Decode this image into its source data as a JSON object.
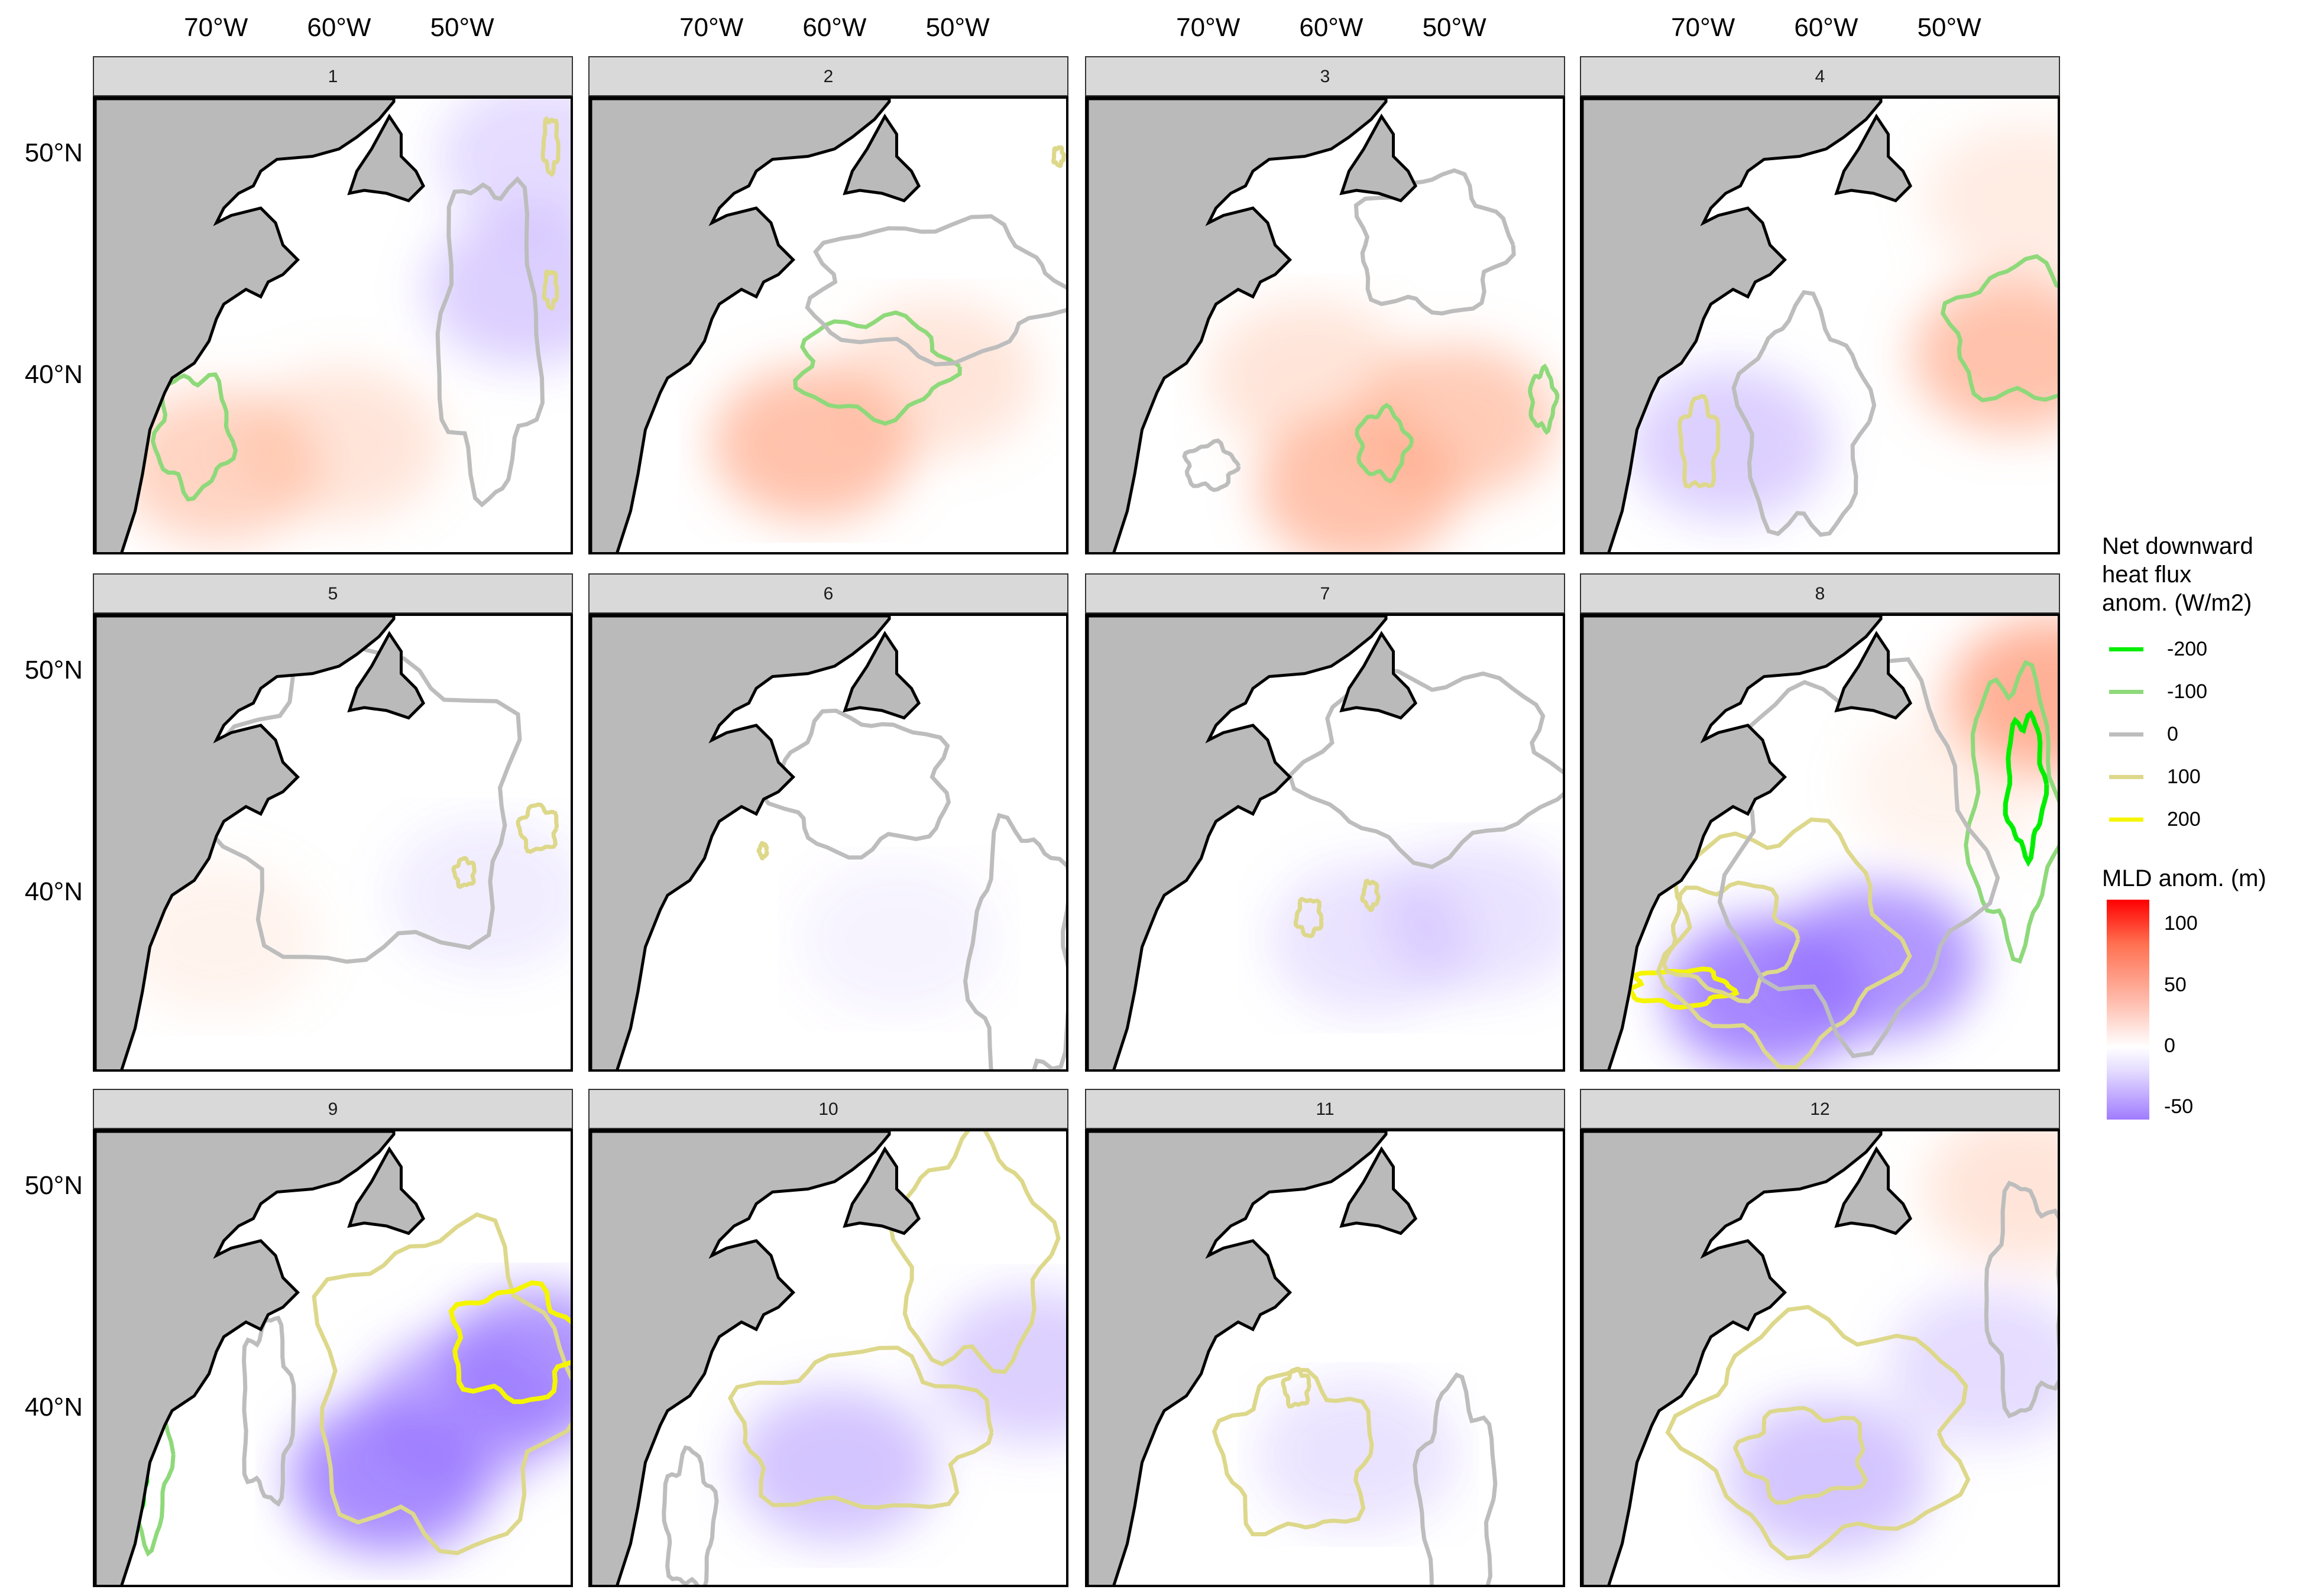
{
  "chart_data": {
    "type": "heatmap",
    "subtype": "faceted map with filled raster and contour lines",
    "facets": [
      "1",
      "2",
      "3",
      "4",
      "5",
      "6",
      "7",
      "8",
      "9",
      "10",
      "11",
      "12"
    ],
    "x_ticks": [
      "70°W",
      "60°W",
      "50°W"
    ],
    "y_ticks": [
      "50°N",
      "40°N"
    ],
    "xlim_lon": [
      -80,
      -41
    ],
    "ylim_lat": [
      32,
      52.6
    ],
    "fill_legend": {
      "title": "MLD anom. (m)",
      "ticks": [
        "100",
        "50",
        "0",
        "-50"
      ],
      "range": [
        -60,
        120
      ],
      "colors": {
        "low": "#a07cff",
        "mid": "#ffffff",
        "high": "#ff0000"
      }
    },
    "contour_legend": {
      "title": "Net downward heat flux anom. (W/m2)",
      "title_lines": [
        "Net downward",
        "heat flux",
        "anom. (W/m2)"
      ],
      "levels": [
        {
          "label": "-200",
          "value": -200,
          "color": "#00ee00"
        },
        {
          "label": "-100",
          "value": -100,
          "color": "#8ed97a"
        },
        {
          "label": "0",
          "value": 0,
          "color": "#bdbdbd"
        },
        {
          "label": "100",
          "value": 100,
          "color": "#ddd88a"
        },
        {
          "label": "200",
          "value": 200,
          "color": "#f5f500"
        }
      ]
    },
    "land_color": "#bababa",
    "panels": [
      {
        "blobs": [
          [
            -70,
            36,
            30
          ],
          [
            -60,
            37,
            20
          ],
          [
            -45,
            44,
            -20
          ],
          [
            -44,
            50,
            -15
          ]
        ],
        "contours": [
          [
            -100,
            -72,
            37.5,
            3,
            2.6
          ],
          [
            0,
            -48,
            42,
            4,
            7
          ],
          [
            100,
            -43,
            50.5,
            0.6,
            1.2
          ],
          [
            100,
            -43,
            44,
            0.5,
            0.8
          ]
        ]
      },
      {
        "blobs": [
          [
            -62,
            37,
            40
          ],
          [
            -52,
            40,
            20
          ]
        ],
        "contours": [
          [
            -100,
            -57,
            40.5,
            6,
            2.2
          ],
          [
            0,
            -52,
            44,
            10,
            3
          ],
          [
            100,
            -42,
            50,
            0.4,
            0.4
          ]
        ]
      },
      {
        "blobs": [
          [
            -58,
            35,
            40
          ],
          [
            -50,
            38,
            35
          ],
          [
            -62,
            40,
            20
          ]
        ],
        "contours": [
          [
            -100,
            -56,
            37,
            2,
            1.5
          ],
          [
            -100,
            -43,
            39,
            1,
            1.3
          ],
          [
            0,
            -52,
            46,
            6,
            3
          ],
          [
            0,
            -70,
            36,
            2,
            1
          ]
        ]
      },
      {
        "blobs": [
          [
            -45,
            41,
            40
          ],
          [
            -68,
            37,
            -20
          ],
          [
            -44,
            48,
            15
          ]
        ],
        "contours": [
          [
            -100,
            -44,
            42,
            6,
            3
          ],
          [
            100,
            -70.5,
            37,
            1.5,
            2
          ],
          [
            0,
            -62,
            38,
            5,
            5
          ]
        ]
      },
      {
        "blobs": [
          [
            -70,
            38,
            10
          ],
          [
            -48,
            40,
            -8
          ]
        ],
        "contours": [
          [
            0,
            -58,
            44,
            12,
            7
          ],
          [
            100,
            -44,
            43,
            1.5,
            1
          ],
          [
            100,
            -50,
            41,
            0.8,
            0.6
          ]
        ]
      },
      {
        "blobs": [
          [
            -55,
            38,
            -5
          ]
        ],
        "contours": [
          [
            0,
            -58,
            45,
            7,
            3
          ],
          [
            0,
            -45,
            37,
            4,
            6
          ],
          [
            100,
            -66,
            42,
            0.3,
            0.3
          ]
        ]
      },
      {
        "blobs": [
          [
            -57,
            38,
            -12
          ],
          [
            -48,
            39,
            -12
          ]
        ],
        "contours": [
          [
            0,
            -52,
            46,
            10,
            4
          ],
          [
            100,
            -62,
            39,
            1,
            0.8
          ],
          [
            100,
            -57,
            40,
            0.6,
            0.6
          ]
        ]
      },
      {
        "blobs": [
          [
            -65,
            35.5,
            -55
          ],
          [
            -56,
            37,
            -45
          ],
          [
            -42,
            49,
            50
          ],
          [
            -50,
            45,
            10
          ]
        ],
        "contours": [
          [
            200,
            -72,
            35.8,
            4,
            0.8
          ],
          [
            100,
            -64,
            38,
            9,
            5
          ],
          [
            100,
            -68,
            38,
            5,
            2.5
          ],
          [
            -100,
            -45,
            44,
            3.5,
            6
          ],
          [
            -200,
            -44,
            45,
            1.5,
            3
          ],
          [
            0,
            -58,
            42,
            10,
            8
          ]
        ]
      },
      {
        "blobs": [
          [
            -56,
            37,
            -50
          ],
          [
            -44,
            42,
            -45
          ],
          [
            -50,
            40,
            -35
          ]
        ],
        "contours": [
          [
            -100,
            -76,
            38,
            2,
            4
          ],
          [
            -200,
            -76.5,
            37,
            0.6,
            1.5
          ],
          [
            100,
            -52,
            41,
            10,
            7
          ],
          [
            200,
            -46,
            43,
            5,
            2.5
          ],
          [
            0,
            -66,
            40,
            2,
            4
          ]
        ]
      },
      {
        "blobs": [
          [
            -60,
            37.5,
            -25
          ],
          [
            -44,
            42,
            -20
          ]
        ],
        "contours": [
          [
            100,
            -58,
            39,
            10,
            3.5
          ],
          [
            100,
            -49,
            47,
            6,
            5
          ],
          [
            0,
            -72,
            35,
            2,
            3
          ]
        ]
      },
      {
        "blobs": [
          [
            -58,
            38,
            -12
          ]
        ],
        "contours": [
          [
            100,
            -63,
            38,
            6,
            3.5
          ],
          [
            100,
            -63,
            41,
            1,
            0.8
          ],
          [
            100,
            -66,
            46,
            1,
            0.7
          ],
          [
            0,
            -50,
            36,
            3,
            5
          ]
        ]
      },
      {
        "blobs": [
          [
            -60,
            37,
            -25
          ],
          [
            -47,
            42,
            -15
          ],
          [
            -44,
            50,
            20
          ]
        ],
        "contours": [
          [
            100,
            -60,
            39,
            11,
            5
          ],
          [
            100,
            -62,
            38,
            5,
            2
          ],
          [
            0,
            -44,
            45,
            3,
            5
          ]
        ]
      }
    ]
  }
}
